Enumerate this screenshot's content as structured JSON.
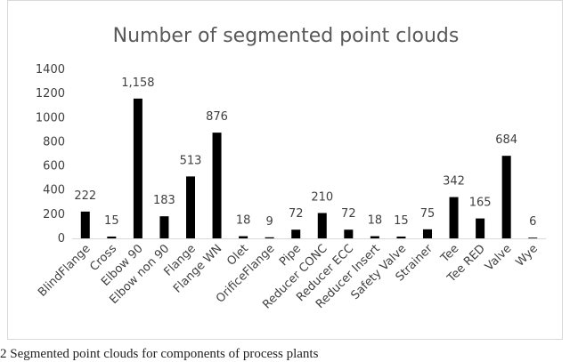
{
  "chart_data": {
    "type": "bar",
    "title": "Number of segmented point clouds",
    "xlabel": "",
    "ylabel": "",
    "ylim": [
      0,
      1400
    ],
    "yticks": [
      0,
      200,
      400,
      600,
      800,
      1000,
      1200,
      1400
    ],
    "ytick_labels": [
      "0",
      "200",
      "400",
      "600",
      "800",
      "1000",
      "1200",
      "1400"
    ],
    "grid": false,
    "legend": "none",
    "bar_color": "#000000",
    "categories": [
      "BlindFlange",
      "Cross",
      "Elbow 90",
      "Elbow non 90",
      "Flange",
      "Flange WN",
      "Olet",
      "OrificeFlange",
      "Pipe",
      "Reducer CONC",
      "Reducer ECC",
      "Reducer Insert",
      "Safety Valve",
      "Strainer",
      "Tee",
      "Tee RED",
      "Valve",
      "Wye"
    ],
    "values": [
      222,
      15,
      1158,
      183,
      513,
      876,
      18,
      9,
      72,
      210,
      72,
      18,
      15,
      75,
      342,
      165,
      684,
      6
    ],
    "data_labels": [
      "222",
      "15",
      "1,158",
      "183",
      "513",
      "876",
      "18",
      "9",
      "72",
      "210",
      "72",
      "18",
      "15",
      "75",
      "342",
      "165",
      "684",
      "6"
    ]
  },
  "caption": "2  Segmented point clouds for components of process plants"
}
